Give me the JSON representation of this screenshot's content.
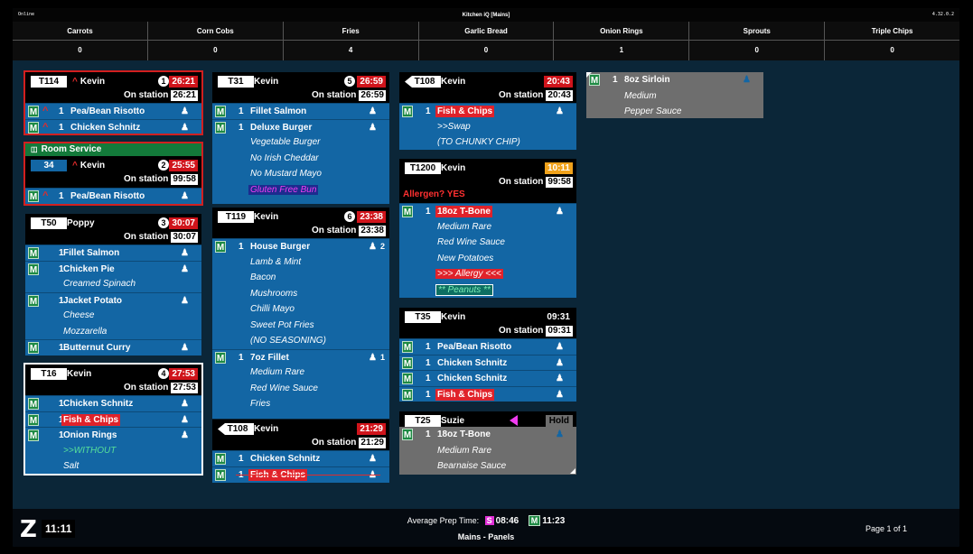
{
  "topbar": {
    "left": "Online",
    "title": "Kitchen iQ [Mains]",
    "version": "4.32.0.2"
  },
  "counts": [
    {
      "name": "Carrots",
      "count": "0"
    },
    {
      "name": "Corn Cobs",
      "count": "0"
    },
    {
      "name": "Fries",
      "count": "4"
    },
    {
      "name": "Garlic Bread",
      "count": "0"
    },
    {
      "name": "Onion Rings",
      "count": "1"
    },
    {
      "name": "Sprouts",
      "count": "0"
    },
    {
      "name": "Triple Chips",
      "count": "0"
    }
  ],
  "tickets": {
    "t114": {
      "table": "T114",
      "server": "Kevin",
      "num": "1",
      "timer": "26:21",
      "on_label": "On station",
      "on": "26:21",
      "items": [
        {
          "q": "1",
          "n": "Pea/Bean Risotto"
        },
        {
          "q": "1",
          "n": "Chicken Schnitz"
        }
      ]
    },
    "room": {
      "label": "Room Service",
      "table": "34",
      "server": "Kevin",
      "num": "2",
      "timer": "25:55",
      "on_label": "On station",
      "on": "99:58",
      "items": [
        {
          "q": "1",
          "n": "Pea/Bean Risotto"
        }
      ]
    },
    "t50": {
      "table": "T50",
      "server": "Poppy",
      "num": "3",
      "timer": "30:07",
      "on_label": "On station",
      "on": "30:07",
      "items": [
        {
          "q": "1",
          "n": "Fillet Salmon"
        },
        {
          "q": "1",
          "n": "Chicken Pie",
          "mods": [
            "Creamed Spinach"
          ]
        },
        {
          "q": "1",
          "n": "Jacket Potato",
          "mods": [
            "Cheese",
            "Mozzarella"
          ]
        },
        {
          "q": "1",
          "n": "Butternut Curry"
        }
      ]
    },
    "t16": {
      "table": "T16",
      "server": "Kevin",
      "num": "4",
      "timer": "27:53",
      "on_label": "On station",
      "on": "27:53",
      "items": [
        {
          "q": "1",
          "n": "Chicken Schnitz"
        },
        {
          "q": "1",
          "n": "Fish & Chips"
        },
        {
          "q": "1",
          "n": "Onion Rings",
          "mods": [
            ">>WITHOUT",
            "Salt"
          ]
        }
      ]
    },
    "t31": {
      "table": "T31",
      "server": "Kevin",
      "num": "5",
      "timer": "26:59",
      "on_label": "On station",
      "on": "26:59",
      "items": [
        {
          "q": "1",
          "n": "Fillet Salmon"
        },
        {
          "q": "1",
          "n": "Deluxe Burger",
          "mods": [
            "Vegetable Burger",
            "No Irish Cheddar",
            "No Mustard Mayo",
            "Gluten Free Bun"
          ]
        }
      ]
    },
    "t119": {
      "table": "T119",
      "server": "Kevin",
      "num": "6",
      "timer": "23:38",
      "on_label": "On station",
      "on": "23:38",
      "items": [
        {
          "q": "1",
          "n": "House Burger",
          "c": "2",
          "mods": [
            "Lamb & Mint",
            "Bacon",
            "Mushrooms",
            "Chilli Mayo",
            "Sweet Pot Fries",
            "(NO SEASONING)"
          ]
        },
        {
          "q": "1",
          "n": "7oz Fillet",
          "c": "1",
          "mods": [
            "Medium Rare",
            "Red Wine Sauce",
            "Fries"
          ]
        }
      ]
    },
    "t108b": {
      "table": "T108",
      "server": "Kevin",
      "timer": "21:29",
      "on_label": "On station",
      "on": "21:29",
      "items": [
        {
          "q": "1",
          "n": "Chicken Schnitz"
        },
        {
          "q": "1",
          "n": "Fish & Chips"
        }
      ]
    },
    "t108": {
      "table": "T108",
      "server": "Kevin",
      "timer": "20:43",
      "on_label": "On station",
      "on": "20:43",
      "items": [
        {
          "q": "1",
          "n": "Fish & Chips",
          "mods": [
            ">>Swap",
            "(TO CHUNKY CHIP)"
          ]
        }
      ]
    },
    "t1200": {
      "table": "T1200",
      "server": "Kevin",
      "timer": "10:11",
      "on_label": "On station",
      "on": "99:58",
      "allergen": "Allergen? YES",
      "items": [
        {
          "q": "1",
          "n": "18oz T-Bone",
          "mods": [
            "Medium Rare",
            "Red Wine Sauce",
            "New Potatoes",
            ">>> Allergy <<<",
            "** Peanuts **"
          ]
        }
      ]
    },
    "t35": {
      "table": "T35",
      "server": "Kevin",
      "timer": "09:31",
      "on_label": "On station",
      "on": "09:31",
      "items": [
        {
          "q": "1",
          "n": "Pea/Bean Risotto"
        },
        {
          "q": "1",
          "n": "Chicken Schnitz"
        },
        {
          "q": "1",
          "n": "Chicken Schnitz"
        },
        {
          "q": "1",
          "n": "Fish & Chips"
        }
      ]
    },
    "t25": {
      "table": "T25",
      "server": "Suzie",
      "hold": "Hold",
      "items": [
        {
          "q": "1",
          "n": "18oz T-Bone",
          "mods": [
            "Medium Rare",
            "Bearnaise Sauce"
          ]
        }
      ]
    },
    "sirloin": {
      "items": [
        {
          "q": "1",
          "n": "8oz Sirloin",
          "mods": [
            "Medium",
            "Pepper Sauce"
          ]
        }
      ]
    }
  },
  "labels": {
    "m": "M"
  },
  "footer": {
    "clock": "11:11",
    "avg_label": "Average Prep Time:",
    "s_badge": "S",
    "s_time": "08:46",
    "m_badge": "M",
    "m_time": "11:23",
    "view": "Mains - Panels",
    "page": "Page 1 of 1"
  }
}
